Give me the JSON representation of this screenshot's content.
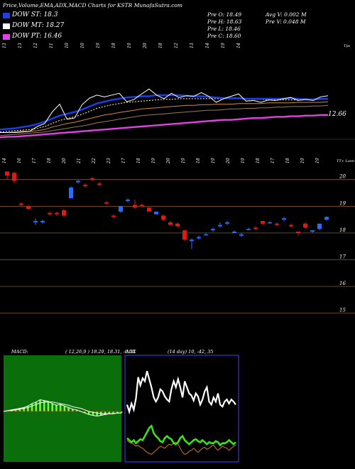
{
  "header": {
    "title": "Price,Volume,EMA,ADX,MACD Charts for KSTR MunafaSutra.com",
    "dow": [
      {
        "label": "DOW ST: 18.3",
        "color": "#1d3fe6"
      },
      {
        "label": "DOW MT: 18.27",
        "color": "#ffffff"
      },
      {
        "label": "DOW PT: 16.46",
        "color": "#e23fe4"
      }
    ],
    "prev_open": "Pre   O: 18.49",
    "prev_high": "Pre   H: 18.63",
    "prev_low": "Pre   L: 18.46",
    "prev_close": "Pre   C: 18.60",
    "avg_volume": "Avg V: 0.002   M",
    "prev_volume": "Pre   V: 0.048   M"
  },
  "ema_panel": {
    "corner_label": "Tpx",
    "last_value_label": "12.66",
    "top_dates": [
      "13",
      "13",
      "12",
      "11",
      "10",
      "10",
      "19",
      "18",
      "19",
      "20",
      "18",
      "12",
      "13",
      "14",
      "19",
      "14"
    ],
    "ema_lines": {
      "price": [
        0.1,
        0.1,
        0.1,
        0.11,
        0.12,
        0.2,
        0.25,
        0.44,
        0.57,
        0.32,
        0.34,
        0.56,
        0.67,
        0.72,
        0.69,
        0.72,
        0.75,
        0.61,
        0.65,
        0.74,
        0.82,
        0.72,
        0.66,
        0.75,
        0.68,
        0.71,
        0.7,
        0.76,
        0.7,
        0.6,
        0.66,
        0.7,
        0.74,
        0.62,
        0.63,
        0.6,
        0.64,
        0.63,
        0.66,
        0.68,
        0.63,
        0.65,
        0.63,
        0.69,
        0.71
      ],
      "ema_fast": [
        0.15,
        0.16,
        0.17,
        0.19,
        0.21,
        0.24,
        0.28,
        0.33,
        0.38,
        0.41,
        0.44,
        0.48,
        0.53,
        0.58,
        0.61,
        0.64,
        0.66,
        0.68,
        0.69,
        0.7,
        0.7,
        0.72,
        0.72,
        0.72,
        0.72,
        0.71,
        0.7,
        0.7,
        0.69,
        0.68,
        0.67,
        0.67,
        0.67,
        0.66,
        0.66,
        0.66,
        0.66,
        0.66,
        0.66,
        0.67,
        0.66,
        0.65,
        0.65,
        0.66,
        0.66
      ],
      "ema_mid": [
        0.11,
        0.12,
        0.13,
        0.14,
        0.15,
        0.17,
        0.2,
        0.25,
        0.3,
        0.33,
        0.36,
        0.4,
        0.45,
        0.5,
        0.53,
        0.56,
        0.58,
        0.6,
        0.61,
        0.62,
        0.63,
        0.64,
        0.65,
        0.65,
        0.66,
        0.66,
        0.66,
        0.66,
        0.66,
        0.66,
        0.66,
        0.66,
        0.66,
        0.65,
        0.65,
        0.65,
        0.64,
        0.64,
        0.64,
        0.64,
        0.64,
        0.64,
        0.64,
        0.65,
        0.65
      ],
      "ema_slow": [
        0.1,
        0.1,
        0.11,
        0.12,
        0.12,
        0.13,
        0.15,
        0.19,
        0.22,
        0.25,
        0.27,
        0.3,
        0.33,
        0.36,
        0.39,
        0.41,
        0.43,
        0.45,
        0.47,
        0.49,
        0.5,
        0.51,
        0.52,
        0.53,
        0.54,
        0.55,
        0.55,
        0.56,
        0.56,
        0.57,
        0.57,
        0.57,
        0.58,
        0.58,
        0.58,
        0.58,
        0.59,
        0.59,
        0.59,
        0.59,
        0.6,
        0.6,
        0.6,
        0.6,
        0.61
      ],
      "ema_long": [
        0.05,
        0.06,
        0.07,
        0.08,
        0.09,
        0.1,
        0.11,
        0.13,
        0.15,
        0.17,
        0.19,
        0.21,
        0.23,
        0.26,
        0.28,
        0.3,
        0.32,
        0.34,
        0.36,
        0.38,
        0.39,
        0.4,
        0.41,
        0.42,
        0.43,
        0.44,
        0.45,
        0.46,
        0.47,
        0.47,
        0.48,
        0.49,
        0.49,
        0.5,
        0.5,
        0.51,
        0.51,
        0.52,
        0.52,
        0.53,
        0.53,
        0.53,
        0.54,
        0.54,
        0.55
      ],
      "ema_magenta": [
        0.02,
        0.03,
        0.03,
        0.04,
        0.05,
        0.06,
        0.07,
        0.08,
        0.09,
        0.1,
        0.11,
        0.12,
        0.13,
        0.14,
        0.15,
        0.16,
        0.17,
        0.18,
        0.19,
        0.2,
        0.21,
        0.22,
        0.23,
        0.24,
        0.25,
        0.26,
        0.27,
        0.28,
        0.29,
        0.3,
        0.31,
        0.31,
        0.32,
        0.33,
        0.34,
        0.34,
        0.35,
        0.36,
        0.36,
        0.37,
        0.37,
        0.38,
        0.38,
        0.39,
        0.39
      ]
    }
  },
  "price_panel": {
    "corner_label": "TT+ Loon",
    "dates": [
      "14",
      "16",
      "17",
      "18",
      "20",
      "21",
      "22",
      "23",
      "17",
      "18",
      "19",
      "20",
      "19",
      "18",
      "19",
      "20",
      "19",
      "18",
      "17",
      "18",
      "19",
      "19"
    ],
    "y_ticks": [
      20,
      19,
      18,
      17,
      16,
      15
    ],
    "y_range": [
      14.7,
      20.55
    ],
    "candles": [
      {
        "o": 20.3,
        "c": 20.15,
        "h": 20.3,
        "l": 20.0,
        "color": "red"
      },
      {
        "o": 20.25,
        "c": 19.95,
        "h": 20.3,
        "l": 19.85,
        "color": "red"
      },
      {
        "o": 19.1,
        "c": 19.05,
        "h": 19.15,
        "l": 19.0,
        "color": "red"
      },
      {
        "o": 19.0,
        "c": 18.9,
        "h": 19.05,
        "l": 18.85,
        "color": "red"
      },
      {
        "o": 18.45,
        "c": 18.4,
        "h": 18.55,
        "l": 18.3,
        "color": "blue"
      },
      {
        "o": 18.4,
        "c": 18.45,
        "h": 18.5,
        "l": 18.35,
        "color": "blue"
      },
      {
        "o": 18.75,
        "c": 18.7,
        "h": 18.8,
        "l": 18.65,
        "color": "red"
      },
      {
        "o": 18.75,
        "c": 18.7,
        "h": 18.8,
        "l": 18.65,
        "color": "red"
      },
      {
        "o": 18.65,
        "c": 18.85,
        "h": 18.9,
        "l": 18.6,
        "color": "red"
      },
      {
        "o": 19.3,
        "c": 19.7,
        "h": 19.75,
        "l": 19.3,
        "color": "blue"
      },
      {
        "o": 19.9,
        "c": 19.95,
        "h": 20.0,
        "l": 19.85,
        "color": "blue"
      },
      {
        "o": 19.8,
        "c": 19.75,
        "h": 19.85,
        "l": 19.7,
        "color": "red"
      },
      {
        "o": 20.05,
        "c": 20.0,
        "h": 20.1,
        "l": 19.95,
        "color": "red"
      },
      {
        "o": 19.85,
        "c": 19.8,
        "h": 19.9,
        "l": 19.75,
        "color": "red"
      },
      {
        "o": 19.15,
        "c": 19.1,
        "h": 19.2,
        "l": 19.05,
        "color": "red"
      },
      {
        "o": 18.65,
        "c": 18.6,
        "h": 18.7,
        "l": 18.55,
        "color": "red"
      },
      {
        "o": 18.8,
        "c": 19.0,
        "h": 19.0,
        "l": 18.75,
        "color": "blue"
      },
      {
        "o": 19.25,
        "c": 19.2,
        "h": 19.3,
        "l": 19.15,
        "color": "blue"
      },
      {
        "o": 19.05,
        "c": 18.95,
        "h": 19.25,
        "l": 18.9,
        "color": "red"
      },
      {
        "o": 19.05,
        "c": 19.0,
        "h": 19.1,
        "l": 18.95,
        "color": "red"
      },
      {
        "o": 18.95,
        "c": 18.8,
        "h": 18.95,
        "l": 18.8,
        "color": "red"
      },
      {
        "o": 18.8,
        "c": 18.7,
        "h": 18.8,
        "l": 18.7,
        "color": "blue"
      },
      {
        "o": 18.65,
        "c": 18.5,
        "h": 18.7,
        "l": 18.45,
        "color": "red"
      },
      {
        "o": 18.4,
        "c": 18.3,
        "h": 18.45,
        "l": 18.3,
        "color": "red"
      },
      {
        "o": 18.35,
        "c": 18.25,
        "h": 18.4,
        "l": 18.2,
        "color": "red"
      },
      {
        "o": 18.1,
        "c": 17.75,
        "h": 18.1,
        "l": 17.7,
        "color": "red"
      },
      {
        "o": 17.75,
        "c": 17.7,
        "h": 17.8,
        "l": 17.4,
        "color": "blue"
      },
      {
        "o": 17.8,
        "c": 17.85,
        "h": 17.9,
        "l": 17.75,
        "color": "blue"
      },
      {
        "o": 17.95,
        "c": 17.95,
        "h": 18.0,
        "l": 17.9,
        "color": "blue"
      },
      {
        "o": 18.1,
        "c": 18.15,
        "h": 18.2,
        "l": 18.05,
        "color": "blue"
      },
      {
        "o": 18.3,
        "c": 18.25,
        "h": 18.4,
        "l": 18.2,
        "color": "blue"
      },
      {
        "o": 18.35,
        "c": 18.4,
        "h": 18.45,
        "l": 18.3,
        "color": "blue"
      },
      {
        "o": 18.05,
        "c": 18.05,
        "h": 18.1,
        "l": 18.0,
        "color": "blue"
      },
      {
        "o": 17.95,
        "c": 17.9,
        "h": 18.0,
        "l": 17.85,
        "color": "blue"
      },
      {
        "o": 18.15,
        "c": 18.15,
        "h": 18.2,
        "l": 18.1,
        "color": "blue"
      },
      {
        "o": 18.2,
        "c": 18.15,
        "h": 18.25,
        "l": 18.1,
        "color": "red"
      },
      {
        "o": 18.45,
        "c": 18.35,
        "h": 18.45,
        "l": 18.3,
        "color": "red"
      },
      {
        "o": 18.4,
        "c": 18.4,
        "h": 18.45,
        "l": 18.35,
        "color": "blue"
      },
      {
        "o": 18.35,
        "c": 18.3,
        "h": 18.4,
        "l": 18.25,
        "color": "red"
      },
      {
        "o": 18.5,
        "c": 18.55,
        "h": 18.6,
        "l": 18.45,
        "color": "blue"
      },
      {
        "o": 18.3,
        "c": 18.25,
        "h": 18.35,
        "l": 18.2,
        "color": "red"
      },
      {
        "o": 18.05,
        "c": 18.05,
        "h": 18.05,
        "l": 17.9,
        "color": "red"
      },
      {
        "o": 18.35,
        "c": 18.2,
        "h": 18.4,
        "l": 18.15,
        "color": "red"
      },
      {
        "o": 18.05,
        "c": 18.1,
        "h": 18.1,
        "l": 18.0,
        "color": "blue"
      },
      {
        "o": 18.15,
        "c": 18.35,
        "h": 18.35,
        "l": 18.1,
        "color": "blue"
      },
      {
        "o": 18.5,
        "c": 18.6,
        "h": 18.63,
        "l": 18.46,
        "color": "blue"
      }
    ]
  },
  "macd_panel": {
    "label": "MACD:",
    "params": "( 12,26,9 ) 18.29,  18.31,  -0.02",
    "macd_line": [
      0.0,
      0.01,
      0.02,
      0.03,
      0.04,
      0.05,
      0.07,
      0.1,
      0.12,
      0.15,
      0.14,
      0.13,
      0.1,
      0.08,
      0.09,
      0.07,
      0.05,
      0.03,
      0.02,
      0.0,
      -0.02,
      -0.04,
      -0.05,
      -0.06,
      -0.05,
      -0.04,
      -0.03,
      -0.03,
      -0.02,
      -0.02
    ],
    "signal_line": [
      0.0,
      0.01,
      0.01,
      0.02,
      0.03,
      0.04,
      0.05,
      0.07,
      0.09,
      0.11,
      0.12,
      0.12,
      0.12,
      0.11,
      0.1,
      0.09,
      0.08,
      0.06,
      0.05,
      0.04,
      0.02,
      0.0,
      -0.01,
      -0.02,
      -0.03,
      -0.03,
      -0.03,
      -0.03,
      -0.02,
      -0.02
    ]
  },
  "adx_panel": {
    "label": "ADX",
    "params": "(14  day)  10,  -42,  35",
    "adx_white": [
      0.55,
      0.48,
      0.56,
      0.5,
      0.61,
      0.82,
      0.74,
      0.81,
      0.78,
      0.88,
      0.8,
      0.72,
      0.62,
      0.58,
      0.62,
      0.7,
      0.68,
      0.63,
      0.6,
      0.58,
      0.7,
      0.78,
      0.72,
      0.8,
      0.72,
      0.62,
      0.78,
      0.72,
      0.66,
      0.64,
      0.59,
      0.66,
      0.63,
      0.55,
      0.6,
      0.68,
      0.72,
      0.58,
      0.55,
      0.62,
      0.58,
      0.66,
      0.55,
      0.53,
      0.58,
      0.6,
      0.56,
      0.6,
      0.58,
      0.55
    ],
    "di_plus": [
      0.22,
      0.2,
      0.18,
      0.2,
      0.17,
      0.19,
      0.21,
      0.2,
      0.24,
      0.28,
      0.32,
      0.34,
      0.27,
      0.24,
      0.22,
      0.19,
      0.18,
      0.22,
      0.24,
      0.22,
      0.21,
      0.17,
      0.16,
      0.18,
      0.22,
      0.24,
      0.2,
      0.18,
      0.16,
      0.18,
      0.2,
      0.21,
      0.19,
      0.18,
      0.2,
      0.18,
      0.16,
      0.18,
      0.17,
      0.17,
      0.19,
      0.18,
      0.15,
      0.17,
      0.17,
      0.18,
      0.2,
      0.18,
      0.16,
      0.18
    ],
    "di_minus": [
      0.2,
      0.18,
      0.17,
      0.16,
      0.14,
      0.15,
      0.13,
      0.12,
      0.1,
      0.08,
      0.07,
      0.06,
      0.08,
      0.1,
      0.12,
      0.14,
      0.13,
      0.12,
      0.14,
      0.16,
      0.15,
      0.17,
      0.18,
      0.16,
      0.12,
      0.08,
      0.06,
      0.07,
      0.09,
      0.1,
      0.12,
      0.1,
      0.08,
      0.1,
      0.12,
      0.13,
      0.11,
      0.12,
      0.14,
      0.15,
      0.12,
      0.1,
      0.12,
      0.14,
      0.13,
      0.12,
      0.1,
      0.12,
      0.14,
      0.15
    ]
  }
}
